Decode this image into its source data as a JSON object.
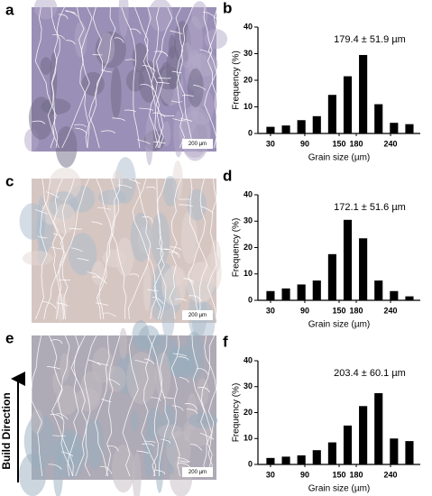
{
  "figure": {
    "panels": [
      {
        "label": "a",
        "scale_bar": "200 µm"
      },
      {
        "label": "c",
        "scale_bar": "200 µm"
      },
      {
        "label": "e",
        "scale_bar": "200 µm"
      }
    ],
    "build_direction": "Build Direction"
  },
  "chart_data": [
    {
      "type": "histogram",
      "panel": "b",
      "annotation": "179.4 ± 51.9 µm",
      "xlabel": "Grain size (µm)",
      "ylabel": "Frequency (%)",
      "color": "#000000",
      "bins": [
        16.5,
        43.5,
        70.5,
        97.5,
        124.5,
        151.5,
        178.5,
        205.5,
        232.5,
        259.5,
        286.5
      ],
      "values": [
        2.5,
        3,
        5,
        6.5,
        14.5,
        21.5,
        29.5,
        11,
        4,
        3.5
      ],
      "xlim": [
        8,
        292
      ],
      "xticks": [
        30,
        90,
        150,
        180,
        240
      ],
      "ylim": [
        0,
        40
      ],
      "yticks": [
        0,
        10,
        20,
        30,
        40
      ]
    },
    {
      "type": "histogram",
      "panel": "d",
      "annotation": "172.1 ± 51.6 µm",
      "xlabel": "Grain size (µm)",
      "ylabel": "Frequency (%)",
      "color": "#000000",
      "bins": [
        16.5,
        43.5,
        70.5,
        97.5,
        124.5,
        151.5,
        178.5,
        205.5,
        232.5,
        259.5,
        286.5
      ],
      "values": [
        3.5,
        4.5,
        6,
        7.5,
        17.5,
        30.5,
        23.5,
        7.5,
        3.5,
        1.5
      ],
      "xlim": [
        8,
        292
      ],
      "xticks": [
        30,
        90,
        150,
        180,
        240
      ],
      "ylim": [
        0,
        40
      ],
      "yticks": [
        0,
        10,
        20,
        30,
        40
      ]
    },
    {
      "type": "histogram",
      "panel": "f",
      "annotation": "203.4 ± 60.1 µm",
      "xlabel": "Grain size (µm)",
      "ylabel": "Frequency (%)",
      "color": "#000000",
      "bins": [
        16.5,
        43.5,
        70.5,
        97.5,
        124.5,
        151.5,
        178.5,
        205.5,
        232.5,
        259.5,
        286.5
      ],
      "values": [
        2.5,
        3,
        3.5,
        5.5,
        8.5,
        15,
        22.5,
        27.5,
        10,
        9
      ],
      "xlim": [
        8,
        292
      ],
      "xticks": [
        30,
        90,
        150,
        180,
        240
      ],
      "ylim": [
        0,
        40
      ],
      "yticks": [
        0,
        10,
        20,
        30,
        40
      ]
    }
  ]
}
